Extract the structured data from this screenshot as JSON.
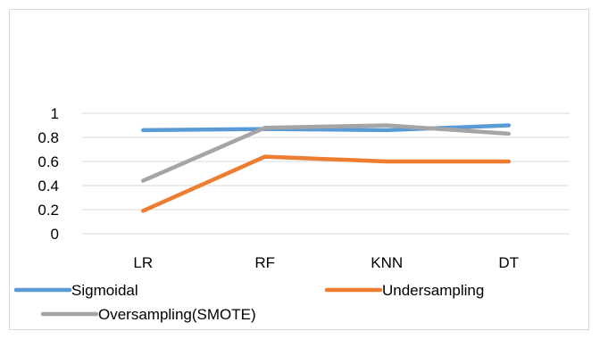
{
  "chart_data": {
    "type": "line",
    "categories": [
      "LR",
      "RF",
      "KNN",
      "DT"
    ],
    "series": [
      {
        "name": "Sigmoidal",
        "values": [
          0.86,
          0.87,
          0.86,
          0.9
        ],
        "color": "#5B9BD5"
      },
      {
        "name": "Undersampling",
        "values": [
          0.19,
          0.64,
          0.6,
          0.6
        ],
        "color": "#ED7D31"
      },
      {
        "name": "Oversampling(SMOTE)",
        "values": [
          0.44,
          0.88,
          0.9,
          0.83
        ],
        "color": "#A5A5A5"
      }
    ],
    "yticks": [
      "0",
      "0.2",
      "0.4",
      "0.6",
      "0.8",
      "1"
    ],
    "ylim": [
      0,
      1
    ],
    "grid": true,
    "legend_position": "bottom"
  }
}
